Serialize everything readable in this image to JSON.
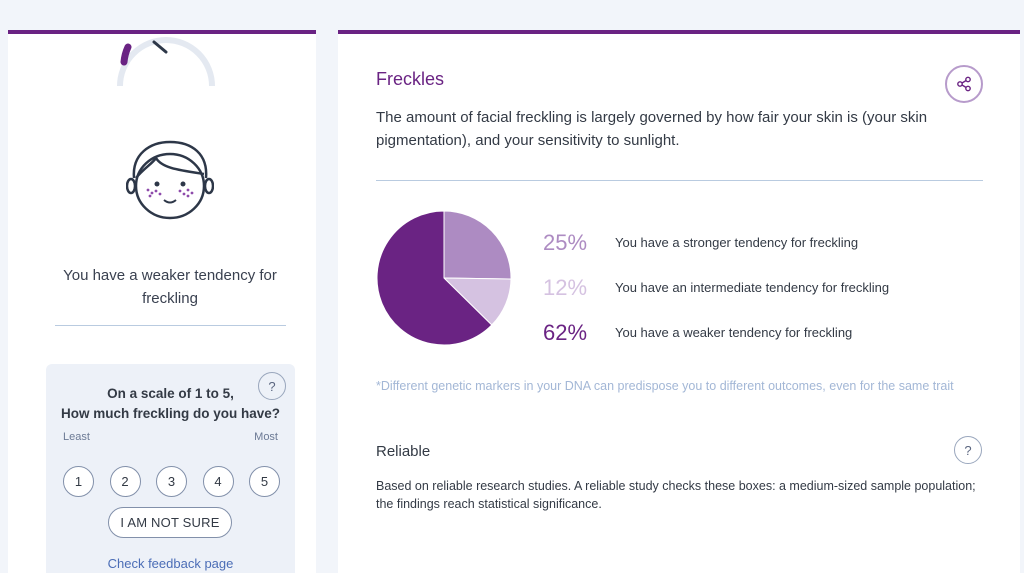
{
  "colors": {
    "accent": "#6a2383",
    "pie_stronger": "#ad8bc2",
    "pie_intermediate": "#d5c2e1",
    "pie_weaker": "#6a2383",
    "link": "#4b6db6",
    "footnote": "#a3b7d6"
  },
  "left_panel": {
    "gauge_icon": "gauge-icon",
    "face_icon": "freckled-face-icon",
    "result_text": "You have a weaker tendency for freckling",
    "scale": {
      "question_line1": "On a scale of 1 to 5,",
      "question_line2": "How much freckling do you have?",
      "help_label": "?",
      "least_label": "Least",
      "most_label": "Most",
      "options": [
        "1",
        "2",
        "3",
        "4",
        "5"
      ],
      "not_sure_label": "I AM NOT SURE",
      "feedback_link": "Check feedback page"
    }
  },
  "right_panel": {
    "title": "Freckles",
    "share_icon": "share-icon",
    "description": "The amount of facial freckling is largely governed by how fair your skin is (your skin pigmentation), and your sensitivity to sunlight.",
    "results": [
      {
        "percent": "25%",
        "label": "You have a stronger tendency for freckling",
        "color": "#ad8bc2"
      },
      {
        "percent": "12%",
        "label": "You have an intermediate tendency for freckling",
        "color": "#d5c2e1"
      },
      {
        "percent": "62%",
        "label": "You have a weaker tendency for freckling",
        "color": "#6a2383"
      }
    ],
    "footnote": "*Different genetic markers in your DNA can predispose you to different outcomes, even for the same trait",
    "reliability": {
      "title": "Reliable",
      "help_label": "?",
      "description": "Based on reliable research studies. A reliable study checks these boxes: a medium-sized sample population; the findings reach statistical significance."
    }
  },
  "chart_data": {
    "type": "pie",
    "categories": [
      "You have a stronger tendency for freckling",
      "You have an intermediate tendency for freckling",
      "You have a weaker tendency for freckling"
    ],
    "values": [
      25,
      12,
      62
    ],
    "colors": [
      "#ad8bc2",
      "#d5c2e1",
      "#6a2383"
    ],
    "title": ""
  }
}
